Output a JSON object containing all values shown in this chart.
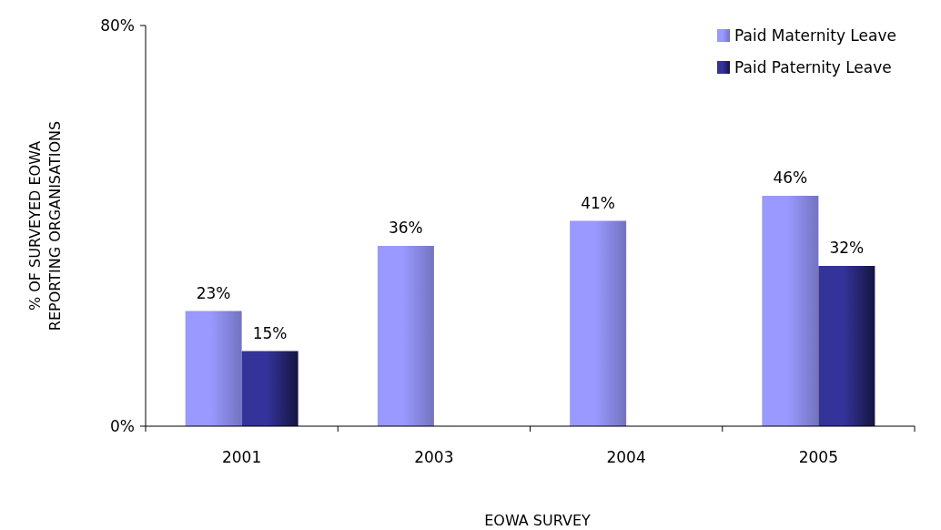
{
  "chart_data": {
    "type": "bar",
    "xlabel": "EOWA SURVEY",
    "ylabel": "% OF SURVEYED EOWA\nREPORTING ORGANISATIONS",
    "categories": [
      "2001",
      "2003",
      "2004",
      "2005"
    ],
    "series": [
      {
        "name": "Paid Maternity Leave",
        "color": "#9999ff",
        "values": [
          23,
          36,
          41,
          46
        ],
        "value_labels": [
          "23%",
          "36%",
          "41%",
          "46%"
        ]
      },
      {
        "name": "Paid Paternity Leave",
        "color": "#333399",
        "values": [
          15,
          null,
          null,
          32
        ],
        "value_labels": [
          "15%",
          null,
          null,
          "32%"
        ]
      }
    ],
    "ylim": [
      0,
      80
    ],
    "yticks": [
      {
        "value": 0,
        "label": "0%"
      },
      {
        "value": 80,
        "label": "80%"
      }
    ],
    "grid": false,
    "legend": "top right"
  }
}
